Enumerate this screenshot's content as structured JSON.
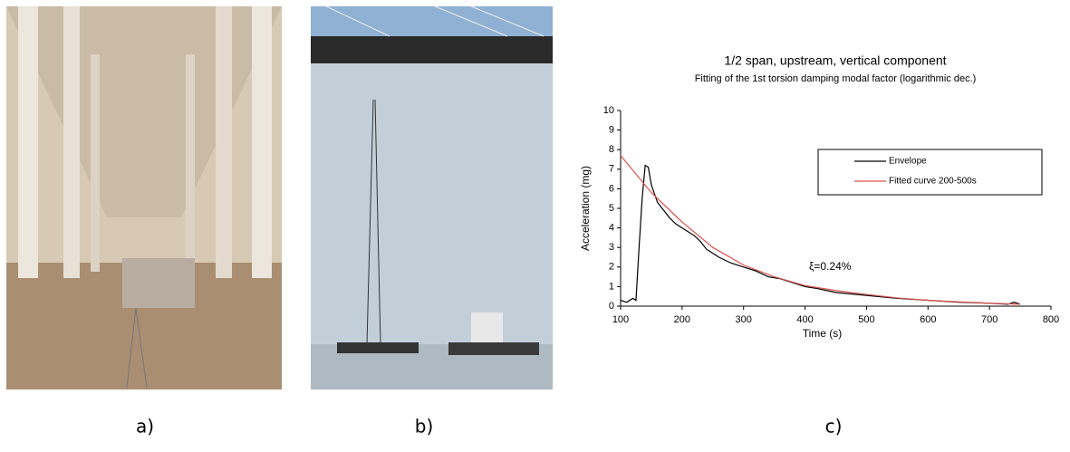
{
  "captions": [
    "a)",
    "b)",
    "c)"
  ],
  "chart_data": {
    "type": "line",
    "title": "1/2 span, upstream, vertical component",
    "subtitle": "Fitting of the 1st torsion damping modal factor (logarithmic dec.)",
    "xlabel": "Time (s)",
    "ylabel": "Acceleration (mg)",
    "annotation": "ξ=0.24%",
    "xlim": [
      100,
      800
    ],
    "xticks": [
      100,
      200,
      300,
      400,
      500,
      600,
      700,
      800
    ],
    "ylim": [
      0,
      10
    ],
    "yticks": [
      0,
      1,
      2,
      3,
      4,
      5,
      6,
      7,
      8,
      9,
      10
    ],
    "legend": "upper right",
    "series": [
      {
        "name": "Envelope",
        "color": "#000000",
        "x": [
          100,
          110,
          120,
          125,
          130,
          135,
          140,
          145,
          150,
          160,
          170,
          180,
          190,
          200,
          210,
          220,
          230,
          240,
          250,
          260,
          280,
          300,
          320,
          340,
          360,
          380,
          400,
          420,
          450,
          500,
          550,
          600,
          650,
          700,
          730,
          740,
          750
        ],
        "values": [
          0.3,
          0.2,
          0.4,
          0.3,
          3.0,
          5.5,
          7.2,
          7.1,
          6.2,
          5.3,
          4.9,
          4.5,
          4.2,
          4.0,
          3.8,
          3.6,
          3.3,
          2.9,
          2.7,
          2.5,
          2.2,
          2.0,
          1.8,
          1.5,
          1.4,
          1.2,
          1.0,
          0.9,
          0.7,
          0.55,
          0.4,
          0.3,
          0.2,
          0.15,
          0.1,
          0.2,
          0.1
        ]
      },
      {
        "name": "Fitted curve 200-500s",
        "color": "#d9534f",
        "x": [
          100,
          150,
          200,
          250,
          300,
          350,
          400,
          450,
          500,
          550,
          600,
          650,
          700,
          750
        ],
        "values": [
          7.7,
          5.8,
          4.3,
          3.0,
          2.1,
          1.5,
          1.05,
          0.8,
          0.6,
          0.42,
          0.3,
          0.22,
          0.15,
          0.1
        ]
      }
    ]
  }
}
